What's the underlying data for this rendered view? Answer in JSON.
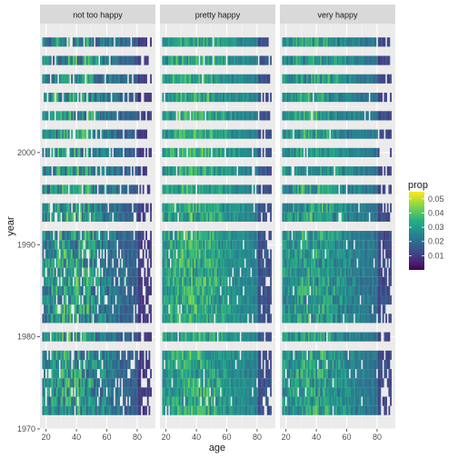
{
  "chart_data": {
    "type": "heatmap",
    "title": "",
    "xlabel": "age",
    "ylabel": "year",
    "facets": [
      "not too happy",
      "pretty happy",
      "very happy"
    ],
    "xlim": [
      16,
      92
    ],
    "ylim": [
      1970,
      2014
    ],
    "x_ticks": [
      20,
      40,
      60,
      80
    ],
    "y_ticks": [
      1970,
      1980,
      1990,
      2000
    ],
    "legend": {
      "title": "prop",
      "position": "right",
      "breaks": [
        "0.05",
        "0.04",
        "0.03",
        "0.02",
        "0.01"
      ],
      "break_values": [
        0.05,
        0.04,
        0.03,
        0.02,
        0.01
      ],
      "range": [
        0.0,
        0.055
      ]
    },
    "colorscale": "viridis",
    "years": [
      1972,
      1973,
      1974,
      1975,
      1976,
      1977,
      1978,
      1980,
      1982,
      1983,
      1984,
      1985,
      1986,
      1987,
      1988,
      1989,
      1990,
      1991,
      1993,
      1994,
      1996,
      1998,
      2000,
      2002,
      2004,
      2006,
      2008,
      2010,
      2012
    ],
    "age_range": [
      18,
      89
    ],
    "cells": "prop of respondents by age within year for each happiness level; dense grid with occasional empty cells",
    "grid": true
  }
}
